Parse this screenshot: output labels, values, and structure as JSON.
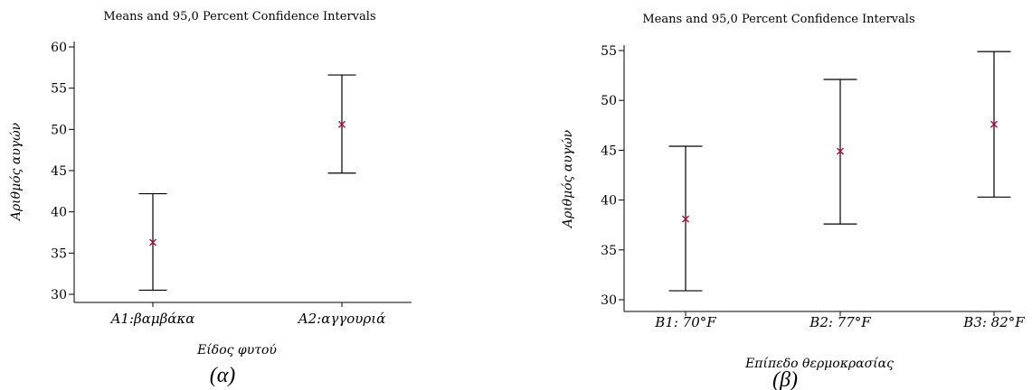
{
  "chart_data": [
    {
      "type": "errorbar",
      "title": "Means and 95,0 Percent Confidence Intervals",
      "xlabel": "Είδος φυτού",
      "ylabel": "Αριθμός αυγών",
      "panel_label": "(α)",
      "categories": [
        "A1:βαμβάκα",
        "A2:αγγουριά"
      ],
      "means": [
        36.3,
        50.6
      ],
      "lower": [
        30.5,
        44.7
      ],
      "upper": [
        42.2,
        56.6
      ],
      "ylim": [
        30,
        60
      ],
      "yticks": [
        30,
        35,
        40,
        45,
        50,
        55,
        60
      ],
      "marker_color": "#8b1a3a"
    },
    {
      "type": "errorbar",
      "title": "Means and 95,0 Percent Confidence Intervals",
      "xlabel": "Επίπεδο θερμοκρασίας",
      "ylabel": "Αριθμός αυγών",
      "panel_label": "(β)",
      "categories": [
        "B1: 70°F",
        "B2: 77°F",
        "B3: 82°F"
      ],
      "means": [
        38.1,
        44.9,
        47.6
      ],
      "lower": [
        30.9,
        37.6,
        40.3
      ],
      "upper": [
        45.4,
        52.1,
        54.9
      ],
      "ylim": [
        30,
        55
      ],
      "yticks": [
        30,
        35,
        40,
        45,
        50,
        55
      ],
      "marker_color": "#8b1a3a"
    }
  ]
}
